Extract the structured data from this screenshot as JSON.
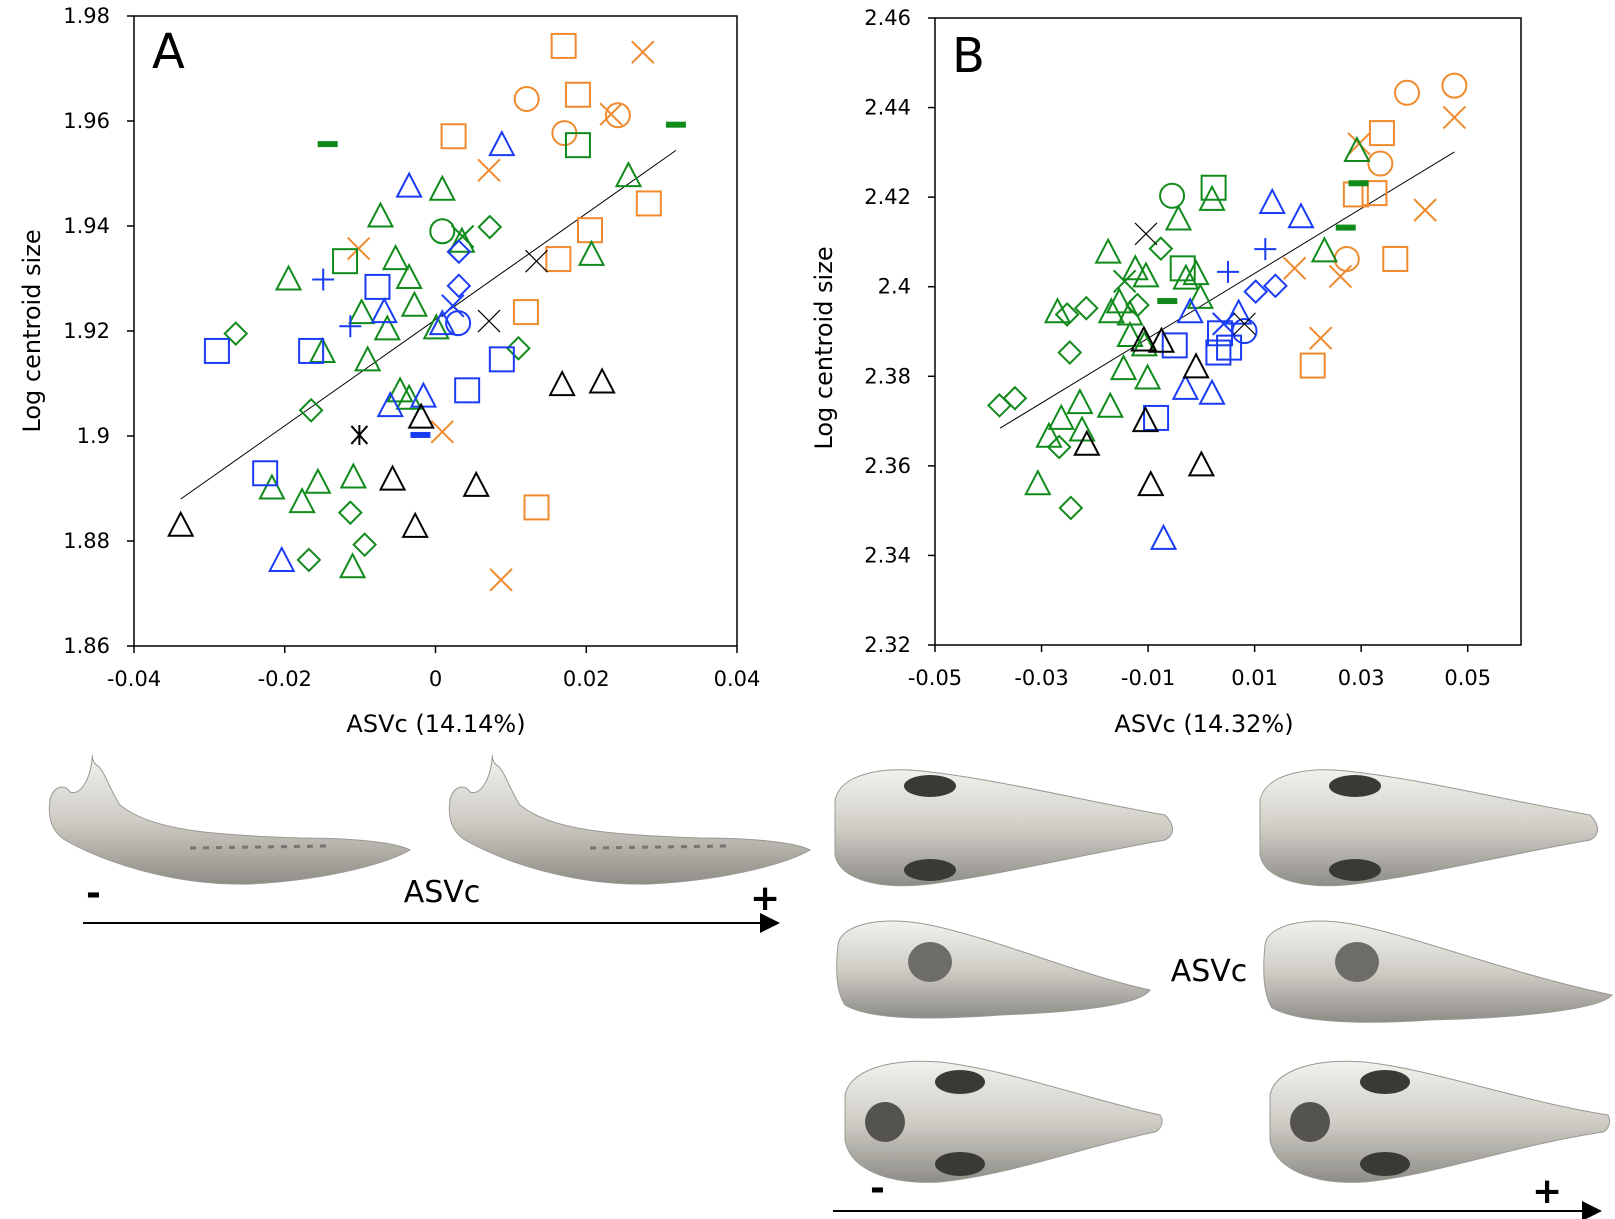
{
  "chart_data": [
    {
      "type": "scatter",
      "panel_label": "A",
      "xlabel": "ASVc (14.14%)",
      "ylabel": "Log centroid size",
      "xlim": [
        -0.04,
        0.04
      ],
      "ylim": [
        1.86,
        1.98
      ],
      "xticks": [
        -0.04,
        -0.02,
        0,
        0.02,
        0.04
      ],
      "xtick_labels": [
        "-0.04",
        "-0.02",
        "0",
        "0.02",
        "0.04"
      ],
      "yticks": [
        1.86,
        1.88,
        1.9,
        1.92,
        1.94,
        1.96,
        1.98
      ],
      "ytick_labels": [
        "1.86",
        "1.88",
        "1.9",
        "1.92",
        "1.94",
        "1.96",
        "1.98"
      ],
      "grid": false,
      "trend_line": [
        [
          -0.0338,
          1.888
        ],
        [
          0.0319,
          1.9544
        ]
      ],
      "series": [
        {
          "color": "#f08a2e",
          "marker": "square",
          "points": [
            [
              0.017,
              1.9743
            ],
            [
              0.0189,
              1.965
            ],
            [
              0.0024,
              1.9571
            ],
            [
              0.0283,
              1.9443
            ],
            [
              0.0205,
              1.9392
            ],
            [
              0.0163,
              1.9337
            ],
            [
              0.012,
              1.9236
            ],
            [
              0.0134,
              1.8864
            ]
          ]
        },
        {
          "color": "#f08a2e",
          "marker": "x",
          "points": [
            [
              0.0275,
              1.9731
            ],
            [
              0.0233,
              1.9613
            ],
            [
              0.0071,
              1.9506
            ],
            [
              -0.0102,
              1.9357
            ],
            [
              0.0009,
              1.9008
            ],
            [
              0.0087,
              1.8726
            ]
          ]
        },
        {
          "color": "#f08a2e",
          "marker": "circle",
          "points": [
            [
              0.0121,
              1.9642
            ],
            [
              0.0242,
              1.9611
            ],
            [
              0.0171,
              1.9577
            ]
          ]
        },
        {
          "color": "#118a1c",
          "marker": "dash",
          "points": [
            [
              -0.0143,
              1.9556
            ],
            [
              0.0319,
              1.9593
            ]
          ]
        },
        {
          "color": "#118a1c",
          "marker": "square",
          "points": [
            [
              0.0189,
              1.9554
            ],
            [
              -0.012,
              1.9333
            ]
          ]
        },
        {
          "color": "#118a1c",
          "marker": "triangle",
          "points": [
            [
              0.0256,
              1.9495
            ],
            [
              0.0009,
              1.9469
            ],
            [
              -0.0073,
              1.9418
            ],
            [
              0.0035,
              1.937
            ],
            [
              0.0207,
              1.9345
            ],
            [
              -0.0053,
              1.9337
            ],
            [
              -0.0035,
              1.9301
            ],
            [
              -0.0195,
              1.9298
            ],
            [
              -0.0028,
              1.9248
            ],
            [
              -0.0098,
              1.9234
            ],
            [
              -0.0064,
              1.9203
            ],
            [
              0.0001,
              1.9205
            ],
            [
              -0.015,
              1.916
            ],
            [
              -0.009,
              1.9144
            ],
            [
              -0.0047,
              1.9085
            ],
            [
              -0.0035,
              1.9071
            ],
            [
              -0.0217,
              1.89
            ],
            [
              -0.0156,
              1.8911
            ],
            [
              -0.0109,
              1.8921
            ],
            [
              -0.0177,
              1.8874
            ],
            [
              -0.011,
              1.875
            ]
          ]
        },
        {
          "color": "#118a1c",
          "marker": "circle",
          "points": [
            [
              0.0009,
              1.939
            ]
          ]
        },
        {
          "color": "#118a1c",
          "marker": "x",
          "points": [
            [
              0.0036,
              1.938
            ]
          ]
        },
        {
          "color": "#118a1c",
          "marker": "diamond",
          "points": [
            [
              0.0072,
              1.9398
            ],
            [
              -0.0265,
              1.9195
            ],
            [
              0.011,
              1.9167
            ],
            [
              -0.0165,
              1.9049
            ],
            [
              -0.0113,
              1.8854
            ],
            [
              -0.0094,
              1.8793
            ],
            [
              -0.0168,
              1.8764
            ]
          ]
        },
        {
          "color": "#1a3cf5",
          "marker": "triangle",
          "points": [
            [
              0.0088,
              1.9554
            ],
            [
              -0.0035,
              1.9475
            ],
            [
              -0.0068,
              1.9236
            ],
            [
              0.0009,
              1.9213
            ],
            [
              -0.006,
              1.9057
            ],
            [
              -0.0016,
              1.9075
            ],
            [
              -0.0204,
              1.8762
            ]
          ]
        },
        {
          "color": "#1a3cf5",
          "marker": "diamond",
          "points": [
            [
              0.0031,
              1.9351
            ],
            [
              0.0031,
              1.9286
            ]
          ]
        },
        {
          "color": "#1a3cf5",
          "marker": "x",
          "points": [
            [
              0.0023,
              1.9248
            ]
          ]
        },
        {
          "color": "#1a3cf5",
          "marker": "plus",
          "points": [
            [
              -0.0149,
              1.9298
            ],
            [
              -0.0113,
              1.9209
            ]
          ]
        },
        {
          "color": "#1a3cf5",
          "marker": "square",
          "points": [
            [
              -0.0077,
              1.9284
            ],
            [
              -0.029,
              1.9162
            ],
            [
              -0.0165,
              1.9162
            ],
            [
              0.0088,
              1.9146
            ],
            [
              0.0042,
              1.9087
            ],
            [
              -0.0226,
              1.8929
            ]
          ]
        },
        {
          "color": "#1a3cf5",
          "marker": "circle",
          "points": [
            [
              0.003,
              1.9215
            ]
          ]
        },
        {
          "color": "#1a3cf5",
          "marker": "dash",
          "points": [
            [
              -0.002,
              1.9002
            ]
          ]
        },
        {
          "color": "#000000",
          "marker": "x",
          "points": [
            [
              0.0134,
              1.9333
            ],
            [
              0.0071,
              1.9219
            ]
          ]
        },
        {
          "color": "#000000",
          "marker": "asterisk",
          "points": [
            [
              -0.0101,
              1.9002
            ]
          ]
        },
        {
          "color": "#000000",
          "marker": "triangle",
          "points": [
            [
              -0.0019,
              1.9035
            ],
            [
              0.0168,
              1.9097
            ],
            [
              0.0221,
              1.9102
            ],
            [
              -0.0057,
              1.8917
            ],
            [
              0.0054,
              1.8905
            ],
            [
              -0.0338,
              1.8829
            ],
            [
              -0.0027,
              1.8827
            ]
          ]
        }
      ]
    },
    {
      "type": "scatter",
      "panel_label": "B",
      "xlabel": "ASVc (14.32%)",
      "ylabel": "Log centroid size",
      "xlim": [
        -0.05,
        0.06
      ],
      "ylim": [
        2.32,
        2.46
      ],
      "xticks": [
        -0.05,
        -0.03,
        -0.01,
        0.01,
        0.03,
        0.05
      ],
      "xtick_labels": [
        "-0.05",
        "-0.03",
        "-0.01",
        "0.01",
        "0.03",
        "0.05"
      ],
      "yticks": [
        2.32,
        2.34,
        2.36,
        2.38,
        2.4,
        2.42,
        2.44,
        2.46
      ],
      "ytick_labels": [
        "2.32",
        "2.34",
        "2.36",
        "2.38",
        "2.4",
        "2.42",
        "2.44",
        "2.46"
      ],
      "grid": false,
      "trend_line": [
        [
          -0.0378,
          2.3684
        ],
        [
          0.0475,
          2.4301
        ]
      ],
      "series": [
        {
          "color": "#f08a2e",
          "marker": "circle",
          "points": [
            [
              0.0386,
              2.4433
            ],
            [
              0.0475,
              2.4449
            ],
            [
              0.0336,
              2.4275
            ],
            [
              0.0273,
              2.4062
            ]
          ]
        },
        {
          "color": "#f08a2e",
          "marker": "x",
          "points": [
            [
              0.0475,
              2.4378
            ],
            [
              0.0296,
              2.4319
            ],
            [
              0.042,
              2.4171
            ],
            [
              0.0175,
              2.4041
            ],
            [
              0.0261,
              2.4023
            ],
            [
              0.0224,
              2.3885
            ]
          ]
        },
        {
          "color": "#f08a2e",
          "marker": "square",
          "points": [
            [
              0.0339,
              2.4343
            ],
            [
              0.029,
              2.4206
            ],
            [
              0.0325,
              2.4209
            ],
            [
              0.0364,
              2.4062
            ],
            [
              0.0209,
              2.3824
            ]
          ]
        },
        {
          "color": "#118a1c",
          "marker": "circle",
          "points": [
            [
              -0.0055,
              2.4203
            ]
          ]
        },
        {
          "color": "#118a1c",
          "marker": "square",
          "points": [
            [
              0.0023,
              2.4221
            ],
            [
              -0.0035,
              2.4041
            ]
          ]
        },
        {
          "color": "#118a1c",
          "marker": "dash",
          "points": [
            [
              0.0295,
              2.4231
            ],
            [
              0.0271,
              2.4132
            ],
            [
              -0.0064,
              2.3968
            ]
          ]
        },
        {
          "color": "#118a1c",
          "marker": "x",
          "points": [
            [
              -0.0144,
              2.4012
            ]
          ]
        },
        {
          "color": "#118a1c",
          "marker": "triangle",
          "points": [
            [
              0.002,
              2.4194
            ],
            [
              -0.0043,
              2.415
            ],
            [
              0.0292,
              2.4303
            ],
            [
              0.0231,
              2.4079
            ],
            [
              -0.0175,
              2.4076
            ],
            [
              -0.0124,
              2.4039
            ],
            [
              -0.0104,
              2.4023
            ],
            [
              -0.001,
              2.4028
            ],
            [
              -0.0029,
              2.4018
            ],
            [
              -0.0002,
              2.3975
            ],
            [
              -0.027,
              2.3943
            ],
            [
              -0.0169,
              2.3943
            ],
            [
              -0.0154,
              2.3965
            ],
            [
              -0.0134,
              2.3938
            ],
            [
              -0.0134,
              2.389
            ],
            [
              -0.0107,
              2.3869
            ],
            [
              -0.0146,
              2.3816
            ],
            [
              -0.0101,
              2.3795
            ],
            [
              -0.0228,
              2.374
            ],
            [
              -0.0171,
              2.3732
            ],
            [
              -0.0263,
              2.3705
            ],
            [
              -0.0224,
              2.3679
            ],
            [
              -0.0286,
              2.3665
            ],
            [
              -0.0307,
              2.3559
            ]
          ]
        },
        {
          "color": "#118a1c",
          "marker": "diamond",
          "points": [
            [
              -0.0076,
              2.4085
            ],
            [
              -0.0216,
              2.3952
            ],
            [
              -0.0252,
              2.3938
            ],
            [
              -0.012,
              2.3959
            ],
            [
              -0.0247,
              2.3853
            ],
            [
              -0.0379,
              2.3735
            ],
            [
              -0.035,
              2.3751
            ],
            [
              -0.0267,
              2.3642
            ],
            [
              -0.0245,
              2.3506
            ]
          ]
        },
        {
          "color": "#1a3cf5",
          "marker": "triangle",
          "points": [
            [
              0.0133,
              2.4187
            ],
            [
              0.0187,
              2.4155
            ],
            [
              -0.0021,
              2.3943
            ],
            [
              0.007,
              2.394
            ],
            [
              -0.003,
              2.3772
            ],
            [
              0.002,
              2.3761
            ],
            [
              -0.0071,
              2.3437
            ]
          ]
        },
        {
          "color": "#1a3cf5",
          "marker": "plus",
          "points": [
            [
              0.012,
              2.4084
            ],
            [
              0.005,
              2.4033
            ]
          ]
        },
        {
          "color": "#1a3cf5",
          "marker": "diamond",
          "points": [
            [
              0.0102,
              2.3989
            ],
            [
              0.0139,
              2.4002
            ]
          ]
        },
        {
          "color": "#1a3cf5",
          "marker": "x",
          "points": [
            [
              0.0042,
              2.3917
            ]
          ]
        },
        {
          "color": "#1a3cf5",
          "marker": "circle",
          "points": [
            [
              0.0081,
              2.3901
            ]
          ]
        },
        {
          "color": "#1a3cf5",
          "marker": "square",
          "points": [
            [
              -0.005,
              2.3869
            ],
            [
              0.0035,
              2.3896
            ],
            [
              0.0052,
              2.3864
            ],
            [
              0.0032,
              2.3853
            ],
            [
              -0.0085,
              2.3707
            ]
          ]
        },
        {
          "color": "#000000",
          "marker": "x",
          "points": [
            [
              -0.0104,
              2.4118
            ],
            [
              0.0081,
              2.3917
            ]
          ]
        },
        {
          "color": "#000000",
          "marker": "triangle",
          "points": [
            [
              -0.0108,
              2.388
            ],
            [
              -0.0075,
              2.3877
            ],
            [
              -0.001,
              2.382
            ],
            [
              -0.0105,
              2.37
            ],
            [
              -0.0215,
              2.3647
            ],
            [
              0.0,
              2.3601
            ],
            [
              -0.0095,
              2.3557
            ]
          ]
        }
      ]
    }
  ],
  "mandible_panel": {
    "axis_label": "ASVc",
    "minus": "-",
    "plus": "+"
  },
  "skull_panel": {
    "axis_label": "ASVc",
    "minus": "-",
    "plus": "+"
  }
}
